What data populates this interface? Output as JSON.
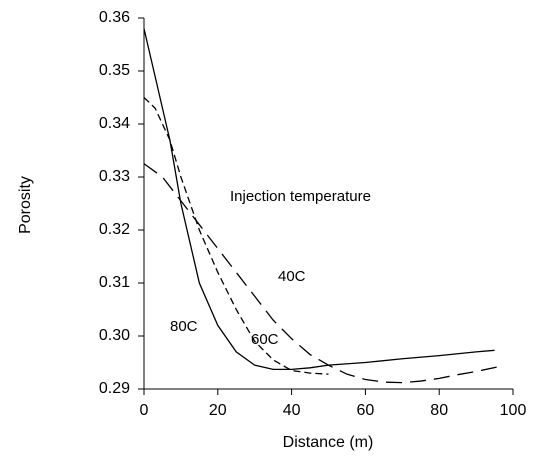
{
  "chart_data": {
    "type": "line",
    "xlabel": "Distance (m)",
    "ylabel": "Porosity",
    "annotations": [
      "Injection temperature",
      "40C",
      "60C",
      "80C"
    ],
    "xlim": [
      0,
      100
    ],
    "xticks": [
      0,
      20,
      40,
      60,
      80,
      100
    ],
    "ylim": [
      0.29,
      0.36
    ],
    "yticks": [
      0.29,
      {
        "value": 0.3,
        "label": "0.30"
      },
      0.31,
      0.32,
      0.33,
      0.34,
      0.35,
      0.36
    ],
    "series": [
      {
        "name": "80C",
        "color": "#000000",
        "dash": "solid",
        "x": [
          0,
          2,
          5,
          7,
          10,
          15,
          20,
          25,
          30,
          35,
          40,
          45,
          50,
          60,
          70,
          80,
          90,
          95
        ],
        "values": [
          0.358,
          0.352,
          0.343,
          0.337,
          0.325,
          0.31,
          0.302,
          0.297,
          0.2945,
          0.2937,
          0.2937,
          0.294,
          0.2945,
          0.295,
          0.2957,
          0.2963,
          0.297,
          0.2973
        ]
      },
      {
        "name": "60C",
        "color": "#000000",
        "dash": "short",
        "x": [
          0,
          3,
          5,
          7,
          10,
          15,
          20,
          25,
          30,
          35,
          40,
          45,
          50
        ],
        "values": [
          0.345,
          0.343,
          0.34,
          0.337,
          0.33,
          0.32,
          0.312,
          0.305,
          0.299,
          0.2955,
          0.2935,
          0.293,
          0.2928
        ]
      },
      {
        "name": "40C",
        "color": "#000000",
        "dash": "long",
        "x": [
          0,
          5,
          10,
          15,
          20,
          25,
          30,
          35,
          40,
          45,
          50,
          55,
          60,
          65,
          70,
          75,
          80,
          85,
          90,
          96
        ],
        "values": [
          0.3325,
          0.33,
          0.3255,
          0.321,
          0.3165,
          0.312,
          0.3075,
          0.303,
          0.2995,
          0.2965,
          0.2945,
          0.2928,
          0.2918,
          0.2913,
          0.2912,
          0.2915,
          0.292,
          0.2927,
          0.2933,
          0.2942
        ]
      }
    ]
  }
}
